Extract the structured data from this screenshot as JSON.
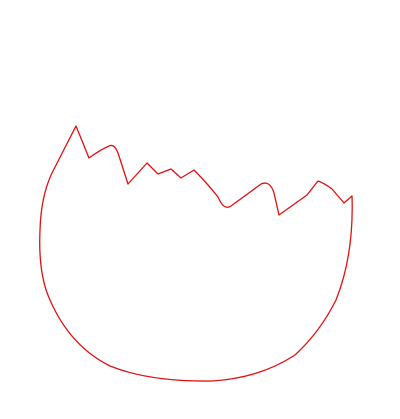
{
  "drawing": {
    "subject": "broken-eggshell-outline",
    "stroke_color": "#e01010",
    "background_color": "#ffffff"
  }
}
